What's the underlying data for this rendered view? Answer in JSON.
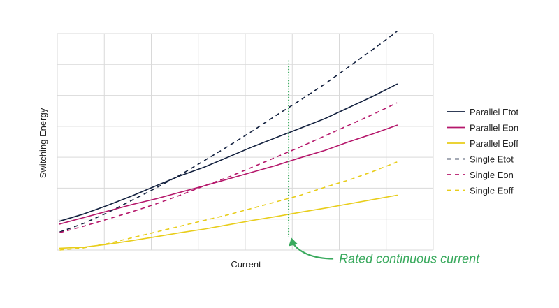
{
  "chart_data": {
    "type": "line",
    "title": "",
    "xlabel": "Current",
    "ylabel": "Switching Energy",
    "x": [
      0,
      1,
      2,
      3,
      4,
      5,
      6,
      7,
      8,
      9,
      10,
      11,
      12,
      13,
      14
    ],
    "xlim": [
      -0.1,
      15.5
    ],
    "ylim": [
      0,
      6
    ],
    "grid": true,
    "show_tick_labels": false,
    "legend": {
      "placement": "right"
    },
    "series": [
      {
        "name": "Parallel Etot",
        "color": "#13213f",
        "dash": "solid",
        "values": [
          0.8,
          1.0,
          1.24,
          1.5,
          1.78,
          2.06,
          2.3,
          2.58,
          2.86,
          3.12,
          3.38,
          3.64,
          3.95,
          4.26,
          4.6
        ]
      },
      {
        "name": "Parallel Eon",
        "color": "#b5176b",
        "dash": "solid",
        "values": [
          0.72,
          0.9,
          1.08,
          1.26,
          1.42,
          1.6,
          1.78,
          1.97,
          2.16,
          2.35,
          2.56,
          2.76,
          3.0,
          3.22,
          3.46
        ]
      },
      {
        "name": "Parallel Eoff",
        "color": "#e8cd1a",
        "dash": "solid",
        "values": [
          0.05,
          0.08,
          0.16,
          0.26,
          0.37,
          0.48,
          0.58,
          0.7,
          0.82,
          0.93,
          1.05,
          1.16,
          1.28,
          1.4,
          1.52
        ]
      },
      {
        "name": "Single Etot",
        "color": "#13213f",
        "dash": "dashed",
        "values": [
          0.5,
          0.74,
          1.04,
          1.38,
          1.72,
          2.08,
          2.48,
          2.88,
          3.3,
          3.74,
          4.16,
          4.6,
          5.08,
          5.56,
          6.06
        ]
      },
      {
        "name": "Single Eon",
        "color": "#b5176b",
        "dash": "dashed",
        "values": [
          0.48,
          0.66,
          0.86,
          1.06,
          1.28,
          1.52,
          1.78,
          2.02,
          2.3,
          2.58,
          2.86,
          3.16,
          3.46,
          3.76,
          4.08
        ]
      },
      {
        "name": "Single Eoff",
        "color": "#e8cd1a",
        "dash": "dashed",
        "values": [
          0.0,
          0.06,
          0.18,
          0.34,
          0.5,
          0.66,
          0.82,
          0.98,
          1.16,
          1.34,
          1.52,
          1.74,
          1.94,
          2.18,
          2.44
        ]
      }
    ],
    "annotations": [
      {
        "kind": "vline",
        "x": 9.5,
        "y_from": 0.35,
        "y_to": 5.25,
        "color": "#3aaa5e",
        "style": "dotted"
      },
      {
        "kind": "arrow_label",
        "text": "Rated continuous current",
        "color": "#3aaa5e",
        "target_x": 9.5,
        "target_y": 0.3
      }
    ]
  }
}
